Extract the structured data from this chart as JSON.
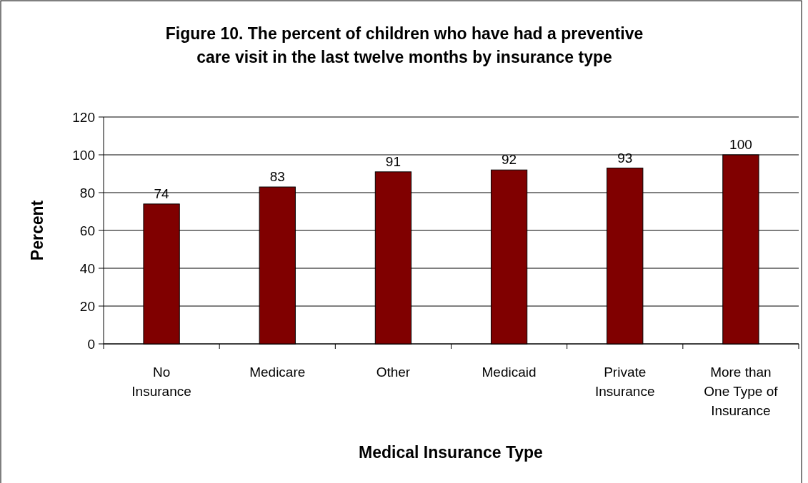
{
  "chart_data": {
    "type": "bar",
    "title": "Figure 10. The percent of children who have had a preventive care visit in the last twelve months by insurance type",
    "xlabel": "Medical Insurance Type",
    "ylabel": "Percent",
    "categories": [
      "No Insurance",
      "Medicare",
      "Other",
      "Medicaid",
      "Private Insurance",
      "More than One Type of Insurance"
    ],
    "values": [
      74,
      83,
      91,
      92,
      93,
      100
    ],
    "color": "#800000",
    "ylim": [
      0,
      120
    ],
    "yticks": [
      0,
      20,
      40,
      60,
      80,
      100,
      120
    ],
    "grid": "y",
    "data_labels": true
  }
}
